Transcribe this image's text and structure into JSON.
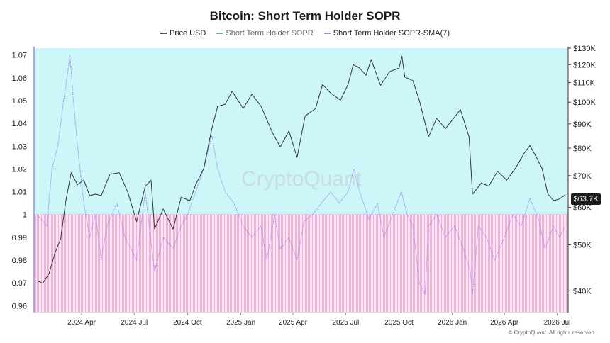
{
  "chart_data": {
    "type": "line",
    "title": "Bitcoin: Short Term Holder SOPR",
    "legend": {
      "placement": "top-center",
      "items": [
        {
          "label": "Price USD",
          "color": "#555555",
          "visible": true
        },
        {
          "label": "Short Term Holder SOPR",
          "color": "#7fa8a8",
          "visible": false
        },
        {
          "label": "Short Term Holder SOPR-SMA(7)",
          "color": "#9b8cf0",
          "visible": true
        }
      ]
    },
    "x_ticks": [
      "2024 Apr",
      "2024 Jul",
      "2024 Oct",
      "2025 Jan",
      "2025 Apr",
      "2025 Jul",
      "2025 Oct",
      "2026 Jan",
      "2026 Apr",
      "2026 Jul"
    ],
    "left_axis": {
      "ticks": [
        "1.07",
        "1.06",
        "1.05",
        "1.04",
        "1.03",
        "1.02",
        "1.01",
        "1",
        "0.99",
        "0.98",
        "0.97",
        "0.96"
      ],
      "range": [
        0.957,
        1.073
      ]
    },
    "right_axis": {
      "scale": "log",
      "ticks": [
        "$130K",
        "$120K",
        "$110K",
        "$100K",
        "$90K",
        "$80K",
        "$70K",
        "$60K",
        "$50K",
        "$40K"
      ],
      "range": [
        36000,
        130000
      ]
    },
    "threshold": 1,
    "grid": false,
    "series": [
      {
        "name": "Price USD",
        "axis": "right",
        "x": [
          "2024-01-15",
          "2024-01-25",
          "2024-02-05",
          "2024-02-15",
          "2024-02-25",
          "2024-03-05",
          "2024-03-14",
          "2024-03-25",
          "2024-04-05",
          "2024-04-15",
          "2024-04-25",
          "2024-05-05",
          "2024-05-20",
          "2024-06-05",
          "2024-06-20",
          "2024-07-05",
          "2024-07-20",
          "2024-07-30",
          "2024-08-05",
          "2024-08-20",
          "2024-09-06",
          "2024-09-20",
          "2024-10-05",
          "2024-10-15",
          "2024-10-29",
          "2024-11-12",
          "2024-11-22",
          "2024-12-05",
          "2024-12-17",
          "2025-01-05",
          "2025-01-20",
          "2025-02-05",
          "2025-02-25",
          "2025-03-10",
          "2025-03-25",
          "2025-04-08",
          "2025-04-22",
          "2025-05-10",
          "2025-05-22",
          "2025-06-05",
          "2025-06-22",
          "2025-07-05",
          "2025-07-14",
          "2025-07-25",
          "2025-08-05",
          "2025-08-14",
          "2025-08-30",
          "2025-09-15",
          "2025-10-01",
          "2025-10-06",
          "2025-10-11",
          "2025-10-25",
          "2025-11-05",
          "2025-11-21",
          "2025-12-05",
          "2025-12-20",
          "2026-01-05",
          "2026-01-15",
          "2026-01-30",
          "2026-02-05",
          "2026-02-20",
          "2026-03-05",
          "2026-03-20",
          "2026-04-05",
          "2026-04-20",
          "2026-05-05",
          "2026-05-15",
          "2026-05-25",
          "2026-06-05",
          "2026-06-15",
          "2026-06-25",
          "2026-07-05",
          "2026-07-15"
        ],
        "values": [
          42000,
          41500,
          43500,
          48000,
          51500,
          62000,
          71000,
          67000,
          68500,
          63500,
          64000,
          63500,
          70500,
          71000,
          64500,
          56000,
          66500,
          68500,
          54000,
          59500,
          54000,
          63000,
          62000,
          67000,
          72500,
          88000,
          98000,
          99000,
          105500,
          97000,
          104000,
          98000,
          86000,
          80500,
          87000,
          76500,
          93500,
          97000,
          109000,
          104500,
          101000,
          109000,
          120000,
          118000,
          114000,
          123000,
          108500,
          116000,
          118000,
          125000,
          113000,
          111000,
          101000,
          84500,
          92500,
          88000,
          93000,
          96500,
          84500,
          64000,
          67500,
          66500,
          71500,
          68500,
          72500,
          78000,
          81000,
          77000,
          72500,
          64000,
          62000,
          62500,
          63700
        ]
      },
      {
        "name": "Short Term Holder SOPR-SMA(7)",
        "axis": "left",
        "x": [
          "2024-01-15",
          "2024-02-01",
          "2024-02-10",
          "2024-02-20",
          "2024-03-01",
          "2024-03-08",
          "2024-03-12",
          "2024-03-18",
          "2024-03-25",
          "2024-04-05",
          "2024-04-15",
          "2024-04-25",
          "2024-05-05",
          "2024-05-15",
          "2024-06-01",
          "2024-06-15",
          "2024-06-25",
          "2024-07-05",
          "2024-07-20",
          "2024-08-05",
          "2024-08-20",
          "2024-09-06",
          "2024-09-20",
          "2024-10-01",
          "2024-10-15",
          "2024-10-29",
          "2024-11-12",
          "2024-11-22",
          "2024-12-05",
          "2024-12-20",
          "2025-01-05",
          "2025-01-20",
          "2025-02-05",
          "2025-02-15",
          "2025-02-28",
          "2025-03-10",
          "2025-03-25",
          "2025-04-08",
          "2025-04-20",
          "2025-05-05",
          "2025-05-20",
          "2025-06-05",
          "2025-06-20",
          "2025-07-05",
          "2025-07-15",
          "2025-07-25",
          "2025-08-10",
          "2025-08-25",
          "2025-09-05",
          "2025-09-20",
          "2025-10-05",
          "2025-10-15",
          "2025-10-25",
          "2025-11-05",
          "2025-11-15",
          "2025-11-21",
          "2025-12-05",
          "2025-12-20",
          "2026-01-05",
          "2026-01-20",
          "2026-02-01",
          "2026-02-05",
          "2026-02-15",
          "2026-03-01",
          "2026-03-15",
          "2026-04-01",
          "2026-04-15",
          "2026-04-30",
          "2026-05-15",
          "2026-05-30",
          "2026-06-10",
          "2026-06-25",
          "2026-07-05",
          "2026-07-15"
        ],
        "values": [
          1.0,
          0.995,
          1.02,
          1.03,
          1.05,
          1.062,
          1.07,
          1.05,
          1.03,
          1.005,
          0.99,
          1.0,
          0.98,
          0.995,
          1.005,
          0.99,
          0.985,
          0.98,
          1.01,
          0.975,
          0.99,
          0.985,
          0.995,
          1.0,
          1.01,
          1.02,
          1.035,
          1.02,
          1.01,
          1.005,
          0.995,
          0.99,
          0.995,
          0.98,
          1.0,
          0.985,
          0.99,
          0.98,
          0.997,
          1.0,
          1.005,
          1.01,
          1.005,
          1.01,
          1.02,
          1.01,
          0.998,
          1.005,
          0.99,
          1.0,
          1.01,
          1.0,
          0.995,
          0.97,
          0.965,
          0.995,
          1.0,
          0.99,
          0.995,
          0.985,
          0.975,
          0.965,
          0.995,
          0.99,
          0.98,
          0.99,
          1.0,
          0.995,
          1.007,
          0.998,
          0.985,
          0.995,
          0.99,
          0.995
        ]
      }
    ]
  },
  "copyright": "© CryptoQuant. All rights reserved",
  "watermark": "CryptoQuant",
  "current_price_label": "$63.7K"
}
